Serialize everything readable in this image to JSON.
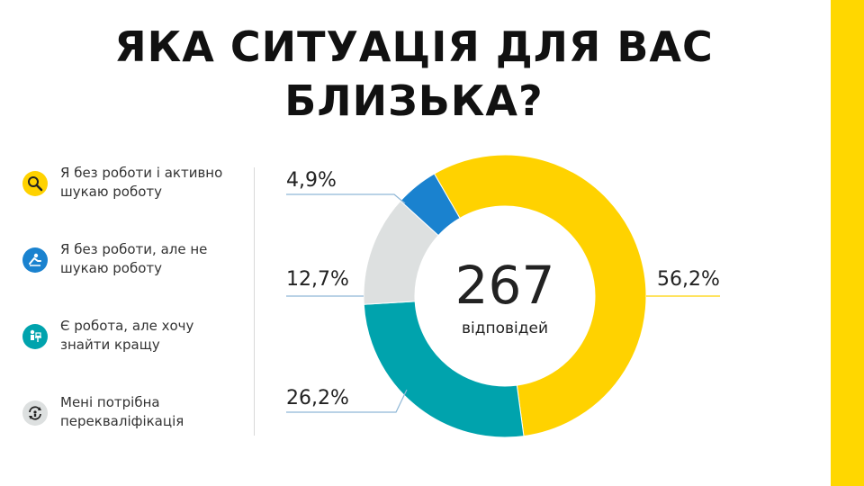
{
  "title": "ЯКА СИТУАЦІЯ ДЛЯ ВАС БЛИЗЬКА?",
  "colors": {
    "accent": "#FFD700",
    "yellow": "#FFD200",
    "blue": "#1A82CF",
    "teal": "#00A3AD",
    "gray": "#DDE0E0",
    "line": "#8fb7d6"
  },
  "legend": [
    {
      "label": "Я без роботи і активно шукаю роботу",
      "icon": "magnifier-icon",
      "color": "#FFD200"
    },
    {
      "label": "Я без роботи, але не шукаю роботу",
      "icon": "lounge-chair-icon",
      "color": "#1A82CF"
    },
    {
      "label": "Є робота, але хочу знайти кращу",
      "icon": "desk-worker-icon",
      "color": "#00A3AD"
    },
    {
      "label": "Мені потрібна перекваліфікація",
      "icon": "refresh-person-icon",
      "color": "#DDE0E0"
    }
  ],
  "center": {
    "value": "267",
    "label": "відповідей"
  },
  "chart_data": {
    "type": "pie",
    "donut": true,
    "title": "ЯКА СИТУАЦІЯ ДЛЯ ВАС БЛИЗЬКА?",
    "categories": [
      "Я без роботи і активно шукаю роботу",
      "Я без роботи, але не шукаю роботу",
      "Є робота, але хочу знайти кращу",
      "Мені потрібна перекваліфікація"
    ],
    "values": [
      56.2,
      4.9,
      26.2,
      12.7
    ],
    "data_labels": [
      "56,2%",
      "4,9%",
      "26,2%",
      "12,7%"
    ],
    "total_responses": 267
  }
}
